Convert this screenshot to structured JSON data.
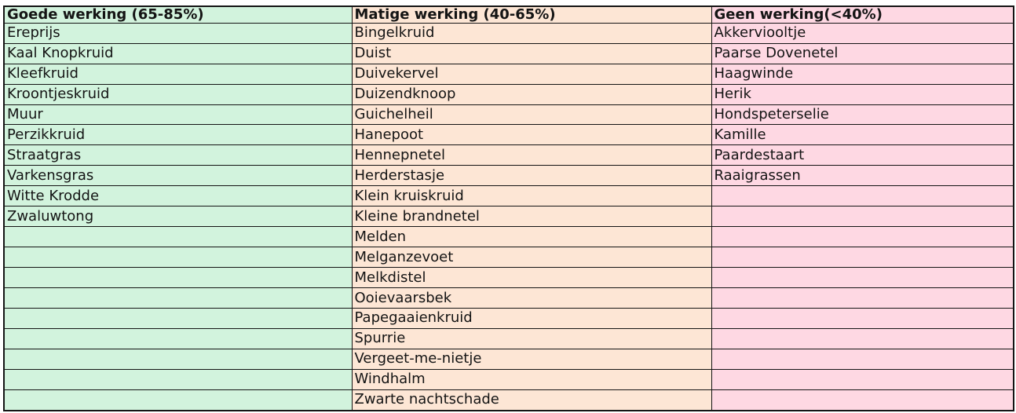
{
  "page": {
    "background_color": "#ffffff",
    "border_color": "#141414",
    "text_color": "#141414"
  },
  "table": {
    "row_count": 19,
    "columns": [
      {
        "id": "goede-werking",
        "header": "Goede werking (65-85%)",
        "color": "#d2f3dd",
        "items": [
          "Ereprijs",
          "Kaal Knopkruid",
          "Kleefkruid",
          "Kroontjeskruid",
          "Muur",
          "Perzikkruid",
          "Straatgras",
          "Varkensgras",
          "Witte Krodde",
          "Zwaluwtong"
        ]
      },
      {
        "id": "matige-werking",
        "header": "Matige werking (40-65%)",
        "color": "#fde6d5",
        "items": [
          "Bingelkruid",
          "Duist",
          "Duivekervel",
          "Duizendknoop",
          "Guichelheil",
          "Hanepoot",
          "Hennepnetel",
          "Herderstasje",
          "Klein kruiskruid",
          "Kleine brandnetel",
          "Melden",
          "Melganzevoet",
          "Melkdistel",
          "Ooievaarsbek",
          "Papegaaienkruid",
          "Spurrie",
          "Vergeet-me-nietje",
          "Windhalm",
          "Zwarte nachtschade"
        ]
      },
      {
        "id": "geen-werking",
        "header": "Geen werking(<40%)",
        "color": "#fed8e3",
        "items": [
          "Akkerviooltje",
          "Paarse Dovenetel",
          "Haagwinde",
          "Herik",
          "Hondspeterselie",
          "Kamille",
          "Paardestaart",
          "Raaigrassen"
        ]
      }
    ]
  }
}
